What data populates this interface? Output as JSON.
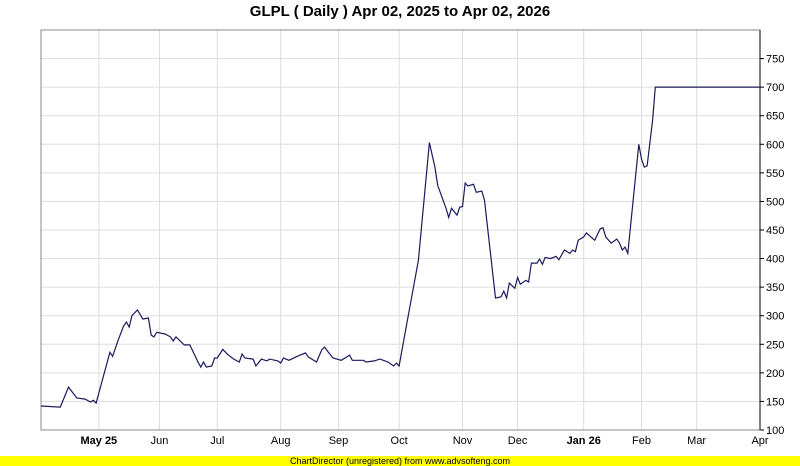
{
  "chart_data": {
    "type": "line",
    "title": "GLPL ( Daily ) Apr 02, 2025 to Apr 02, 2026",
    "xlabel": "",
    "ylabel": "",
    "xlim": [
      "2025-04-02",
      "2026-04-02"
    ],
    "ylim": [
      100,
      800
    ],
    "grid": true,
    "x_scale": "trading days",
    "y_axis_position": "right",
    "line_color": "#1a1a5e",
    "y_ticks": [
      "100",
      "150",
      "200",
      "250",
      "300",
      "350",
      "400",
      "450",
      "500",
      "550",
      "600",
      "650",
      "700",
      "750"
    ],
    "x_ticks": [
      {
        "date": "2025-05-01",
        "label": "May 25",
        "bold": true
      },
      {
        "date": "2025-06-02",
        "label": "Jun",
        "bold": false
      },
      {
        "date": "2025-07-01",
        "label": "Jul",
        "bold": false
      },
      {
        "date": "2025-08-01",
        "label": "Aug",
        "bold": false
      },
      {
        "date": "2025-09-01",
        "label": "Sep",
        "bold": false
      },
      {
        "date": "2025-10-01",
        "label": "Oct",
        "bold": false
      },
      {
        "date": "2025-11-03",
        "label": "Nov",
        "bold": false
      },
      {
        "date": "2025-12-01",
        "label": "Dec",
        "bold": false
      },
      {
        "date": "2026-01-02",
        "label": "Jan 26",
        "bold": true
      },
      {
        "date": "2026-02-02",
        "label": "Feb",
        "bold": false
      },
      {
        "date": "2026-03-02",
        "label": "Mar",
        "bold": false
      },
      {
        "date": "2026-04-02",
        "label": "Apr",
        "bold": false
      }
    ],
    "series": [
      {
        "points": [
          [
            "2025-04-02",
            142
          ],
          [
            "2025-04-11",
            140
          ],
          [
            "2025-04-16",
            175
          ],
          [
            "2025-04-21",
            156
          ],
          [
            "2025-04-24",
            154
          ],
          [
            "2025-04-28",
            149
          ],
          [
            "2025-04-29",
            152
          ],
          [
            "2025-04-30",
            147
          ],
          [
            "2025-05-07",
            236
          ],
          [
            "2025-05-08",
            229
          ],
          [
            "2025-05-12",
            257
          ],
          [
            "2025-05-14",
            282
          ],
          [
            "2025-05-15",
            289
          ],
          [
            "2025-05-16",
            280
          ],
          [
            "2025-05-19",
            300
          ],
          [
            "2025-05-21",
            310
          ],
          [
            "2025-05-23",
            294
          ],
          [
            "2025-05-27",
            296
          ],
          [
            "2025-05-28",
            266
          ],
          [
            "2025-05-29",
            263
          ],
          [
            "2025-05-30",
            271
          ],
          [
            "2025-06-04",
            268
          ],
          [
            "2025-06-06",
            263
          ],
          [
            "2025-06-09",
            256
          ],
          [
            "2025-06-10",
            263
          ],
          [
            "2025-06-13",
            249
          ],
          [
            "2025-06-17",
            249
          ],
          [
            "2025-06-20",
            219
          ],
          [
            "2025-06-23",
            210
          ],
          [
            "2025-06-24",
            219
          ],
          [
            "2025-06-25",
            210
          ],
          [
            "2025-06-27",
            212
          ],
          [
            "2025-06-30",
            226
          ],
          [
            "2025-07-01",
            226
          ],
          [
            "2025-07-03",
            241
          ],
          [
            "2025-07-07",
            231
          ],
          [
            "2025-07-09",
            224
          ],
          [
            "2025-07-11",
            219
          ],
          [
            "2025-07-14",
            233
          ],
          [
            "2025-07-15",
            226
          ],
          [
            "2025-07-18",
            224
          ],
          [
            "2025-07-21",
            212
          ],
          [
            "2025-07-23",
            224
          ],
          [
            "2025-07-25",
            221
          ],
          [
            "2025-07-28",
            224
          ],
          [
            "2025-07-31",
            221
          ],
          [
            "2025-08-01",
            217
          ],
          [
            "2025-08-04",
            226
          ],
          [
            "2025-08-06",
            222
          ],
          [
            "2025-08-11",
            229
          ],
          [
            "2025-08-14",
            235
          ],
          [
            "2025-08-15",
            228
          ],
          [
            "2025-08-20",
            219
          ],
          [
            "2025-08-22",
            241
          ],
          [
            "2025-08-25",
            245
          ],
          [
            "2025-08-26",
            238
          ],
          [
            "2025-08-28",
            226
          ],
          [
            "2025-09-02",
            222
          ],
          [
            "2025-09-04",
            228
          ],
          [
            "2025-09-05",
            231
          ],
          [
            "2025-09-08",
            222
          ],
          [
            "2025-09-12",
            222
          ],
          [
            "2025-09-15",
            219
          ],
          [
            "2025-09-18",
            221
          ],
          [
            "2025-09-22",
            224
          ],
          [
            "2025-09-25",
            219
          ],
          [
            "2025-09-29",
            212
          ],
          [
            "2025-09-30",
            217
          ],
          [
            "2025-10-01",
            212
          ],
          [
            "2025-10-06",
            292
          ],
          [
            "2025-10-10",
            397
          ],
          [
            "2025-10-16",
            603
          ],
          [
            "2025-10-20",
            560
          ],
          [
            "2025-10-21",
            528
          ],
          [
            "2025-10-24",
            488
          ],
          [
            "2025-10-27",
            472
          ],
          [
            "2025-10-28",
            488
          ],
          [
            "2025-10-30",
            476
          ],
          [
            "2025-10-31",
            490
          ],
          [
            "2025-11-03",
            491
          ],
          [
            "2025-11-04",
            532
          ],
          [
            "2025-11-05",
            527
          ],
          [
            "2025-11-07",
            530
          ],
          [
            "2025-11-10",
            516
          ],
          [
            "2025-11-12",
            518
          ],
          [
            "2025-11-13",
            502
          ],
          [
            "2025-11-19",
            331
          ],
          [
            "2025-11-21",
            333
          ],
          [
            "2025-11-24",
            343
          ],
          [
            "2025-11-25",
            331
          ],
          [
            "2025-11-26",
            357
          ],
          [
            "2025-11-28",
            348
          ],
          [
            "2025-12-01",
            367
          ],
          [
            "2025-12-02",
            355
          ],
          [
            "2025-12-04",
            362
          ],
          [
            "2025-12-05",
            359
          ],
          [
            "2025-12-08",
            392
          ],
          [
            "2025-12-10",
            392
          ],
          [
            "2025-12-11",
            399
          ],
          [
            "2025-12-12",
            390
          ],
          [
            "2025-12-15",
            402
          ],
          [
            "2025-12-17",
            400
          ],
          [
            "2025-12-19",
            404
          ],
          [
            "2025-12-22",
            398
          ],
          [
            "2025-12-24",
            415
          ],
          [
            "2025-12-26",
            409
          ],
          [
            "2025-12-29",
            415
          ],
          [
            "2025-12-30",
            412
          ],
          [
            "2025-12-31",
            432
          ],
          [
            "2026-01-02",
            438
          ],
          [
            "2026-01-05",
            445
          ],
          [
            "2026-01-08",
            432
          ],
          [
            "2026-01-12",
            452
          ],
          [
            "2026-01-13",
            454
          ],
          [
            "2026-01-14",
            438
          ],
          [
            "2026-01-16",
            427
          ],
          [
            "2026-01-20",
            434
          ],
          [
            "2026-01-21",
            427
          ],
          [
            "2026-01-22",
            415
          ],
          [
            "2026-01-23",
            420
          ],
          [
            "2026-01-26",
            409
          ],
          [
            "2026-01-30",
            600
          ],
          [
            "2026-02-02",
            574
          ],
          [
            "2026-02-03",
            560
          ],
          [
            "2026-02-04",
            562
          ],
          [
            "2026-02-06",
            642
          ],
          [
            "2026-02-09",
            700
          ],
          [
            "2026-04-02",
            700
          ]
        ]
      }
    ]
  },
  "footer": "ChartDirector (unregistered) from www.advsofteng.com"
}
